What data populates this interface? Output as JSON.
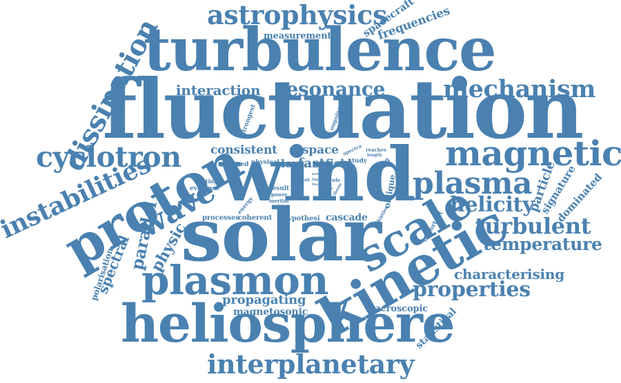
{
  "color": "#4a81b0",
  "words": [
    {
      "text": "fluctuation"
    },
    {
      "text": "wind"
    },
    {
      "text": "solar"
    },
    {
      "text": "turbulence"
    },
    {
      "text": "kinetic"
    },
    {
      "text": "heliosphere"
    },
    {
      "text": "proton"
    },
    {
      "text": "plasmon"
    },
    {
      "text": "scale"
    },
    {
      "text": "magnetic"
    },
    {
      "text": "astrophysics"
    },
    {
      "text": "mechanism"
    },
    {
      "text": "plasma"
    },
    {
      "text": "interplanetary"
    },
    {
      "text": "cyclotron"
    },
    {
      "text": "dissipation"
    },
    {
      "text": "instabilities"
    },
    {
      "text": "resonance"
    },
    {
      "text": "wave"
    },
    {
      "text": "turbulent"
    },
    {
      "text": "helicity"
    },
    {
      "text": "properties"
    },
    {
      "text": "temperature"
    },
    {
      "text": "interaction"
    },
    {
      "text": "consistent"
    },
    {
      "text": "space"
    },
    {
      "text": "slow"
    },
    {
      "text": "fast"
    },
    {
      "text": "field"
    },
    {
      "text": "characterising"
    },
    {
      "text": "propagating"
    },
    {
      "text": "magnetosonic"
    },
    {
      "text": "parallel"
    },
    {
      "text": "spectral"
    },
    {
      "text": "physic"
    },
    {
      "text": "polarisation"
    },
    {
      "text": "frequencies"
    },
    {
      "text": "spacecraft"
    },
    {
      "text": "measurement"
    },
    {
      "text": "particle"
    },
    {
      "text": "signature"
    },
    {
      "text": "dominated"
    },
    {
      "text": "cascade"
    },
    {
      "text": "macroscopic"
    },
    {
      "text": "statistical"
    },
    {
      "text": "processes"
    },
    {
      "text": "coherent"
    },
    {
      "text": "hypothesi"
    },
    {
      "text": "observed"
    },
    {
      "text": "physical"
    },
    {
      "text": "study"
    },
    {
      "text": "finding"
    },
    {
      "text": "heating"
    },
    {
      "text": "evidence"
    },
    {
      "text": "result"
    },
    {
      "text": "power"
    },
    {
      "text": "inertial"
    },
    {
      "text": "energy"
    },
    {
      "text": "strongest"
    },
    {
      "text": "ongoing"
    },
    {
      "text": "oblique"
    },
    {
      "text": "important"
    },
    {
      "text": "whistler"
    },
    {
      "text": "break"
    },
    {
      "text": "spectra"
    },
    {
      "text": "reaches"
    },
    {
      "text": "length"
    },
    {
      "text": "role"
    },
    {
      "text": "noise"
    },
    {
      "text": "flight"
    },
    {
      "text": "floor"
    },
    {
      "text": "time"
    },
    {
      "text": "thesis"
    }
  ]
}
